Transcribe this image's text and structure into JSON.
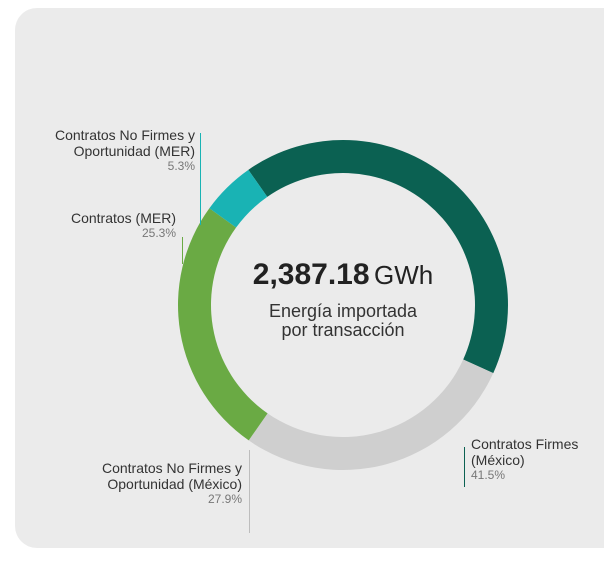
{
  "chart_data": {
    "type": "donut",
    "total": "2,387.18",
    "unit": "GWh",
    "center_label": "Energía importada por transacción",
    "categories": [
      "Contratos Firmes (México)",
      "Contratos No Firmes y Oportunidad (México)",
      "Contratos (MER)",
      "Contratos No Firmes y Oportunidad (MER)"
    ],
    "values": [
      41.5,
      27.9,
      25.3,
      5.3
    ],
    "value_labels": [
      "41.5%",
      "27.9%",
      "25.3%",
      "5.3%"
    ],
    "colors": [
      "#0b6152",
      "#cfcfcf",
      "#6aaa44",
      "#19b3b4"
    ]
  }
}
